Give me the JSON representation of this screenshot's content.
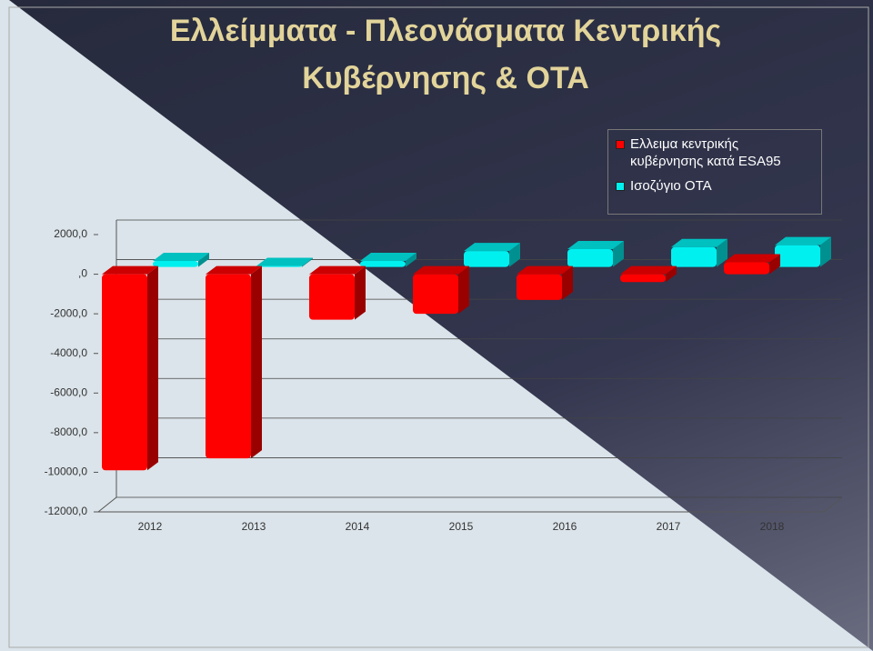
{
  "chart_data": {
    "type": "bar3d",
    "title": "Ελλείμματα - Πλεονάσματα Κεντρικής Κυβέρνησης & ΟΤΑ",
    "categories": [
      "2012",
      "2013",
      "2014",
      "2015",
      "2016",
      "2017",
      "2018"
    ],
    "series": [
      {
        "name": "Ελλειμα κεντρικής κυβέρνησης κατά ESA95",
        "color": "#ff0000",
        "values": [
          -9900,
          -9300,
          -2300,
          -2000,
          -1300,
          -400,
          600
        ]
      },
      {
        "name": "Ισοζύγιο ΟΤΑ",
        "color": "#00f0f0",
        "values": [
          300,
          50,
          300,
          800,
          900,
          1000,
          1100
        ]
      }
    ],
    "ylim": [
      -12000,
      2000
    ],
    "yticks": [
      {
        "value": 2000,
        "label": "2000,0"
      },
      {
        "value": 0,
        "label": ",0"
      },
      {
        "value": -2000,
        "label": "-2000,0"
      },
      {
        "value": -4000,
        "label": "-4000,0"
      },
      {
        "value": -6000,
        "label": "-6000,0"
      },
      {
        "value": -8000,
        "label": "-8000,0"
      },
      {
        "value": -10000,
        "label": "-10000,0"
      },
      {
        "value": -12000,
        "label": "-12000,0"
      }
    ],
    "grid": true,
    "legend": "top-right"
  }
}
